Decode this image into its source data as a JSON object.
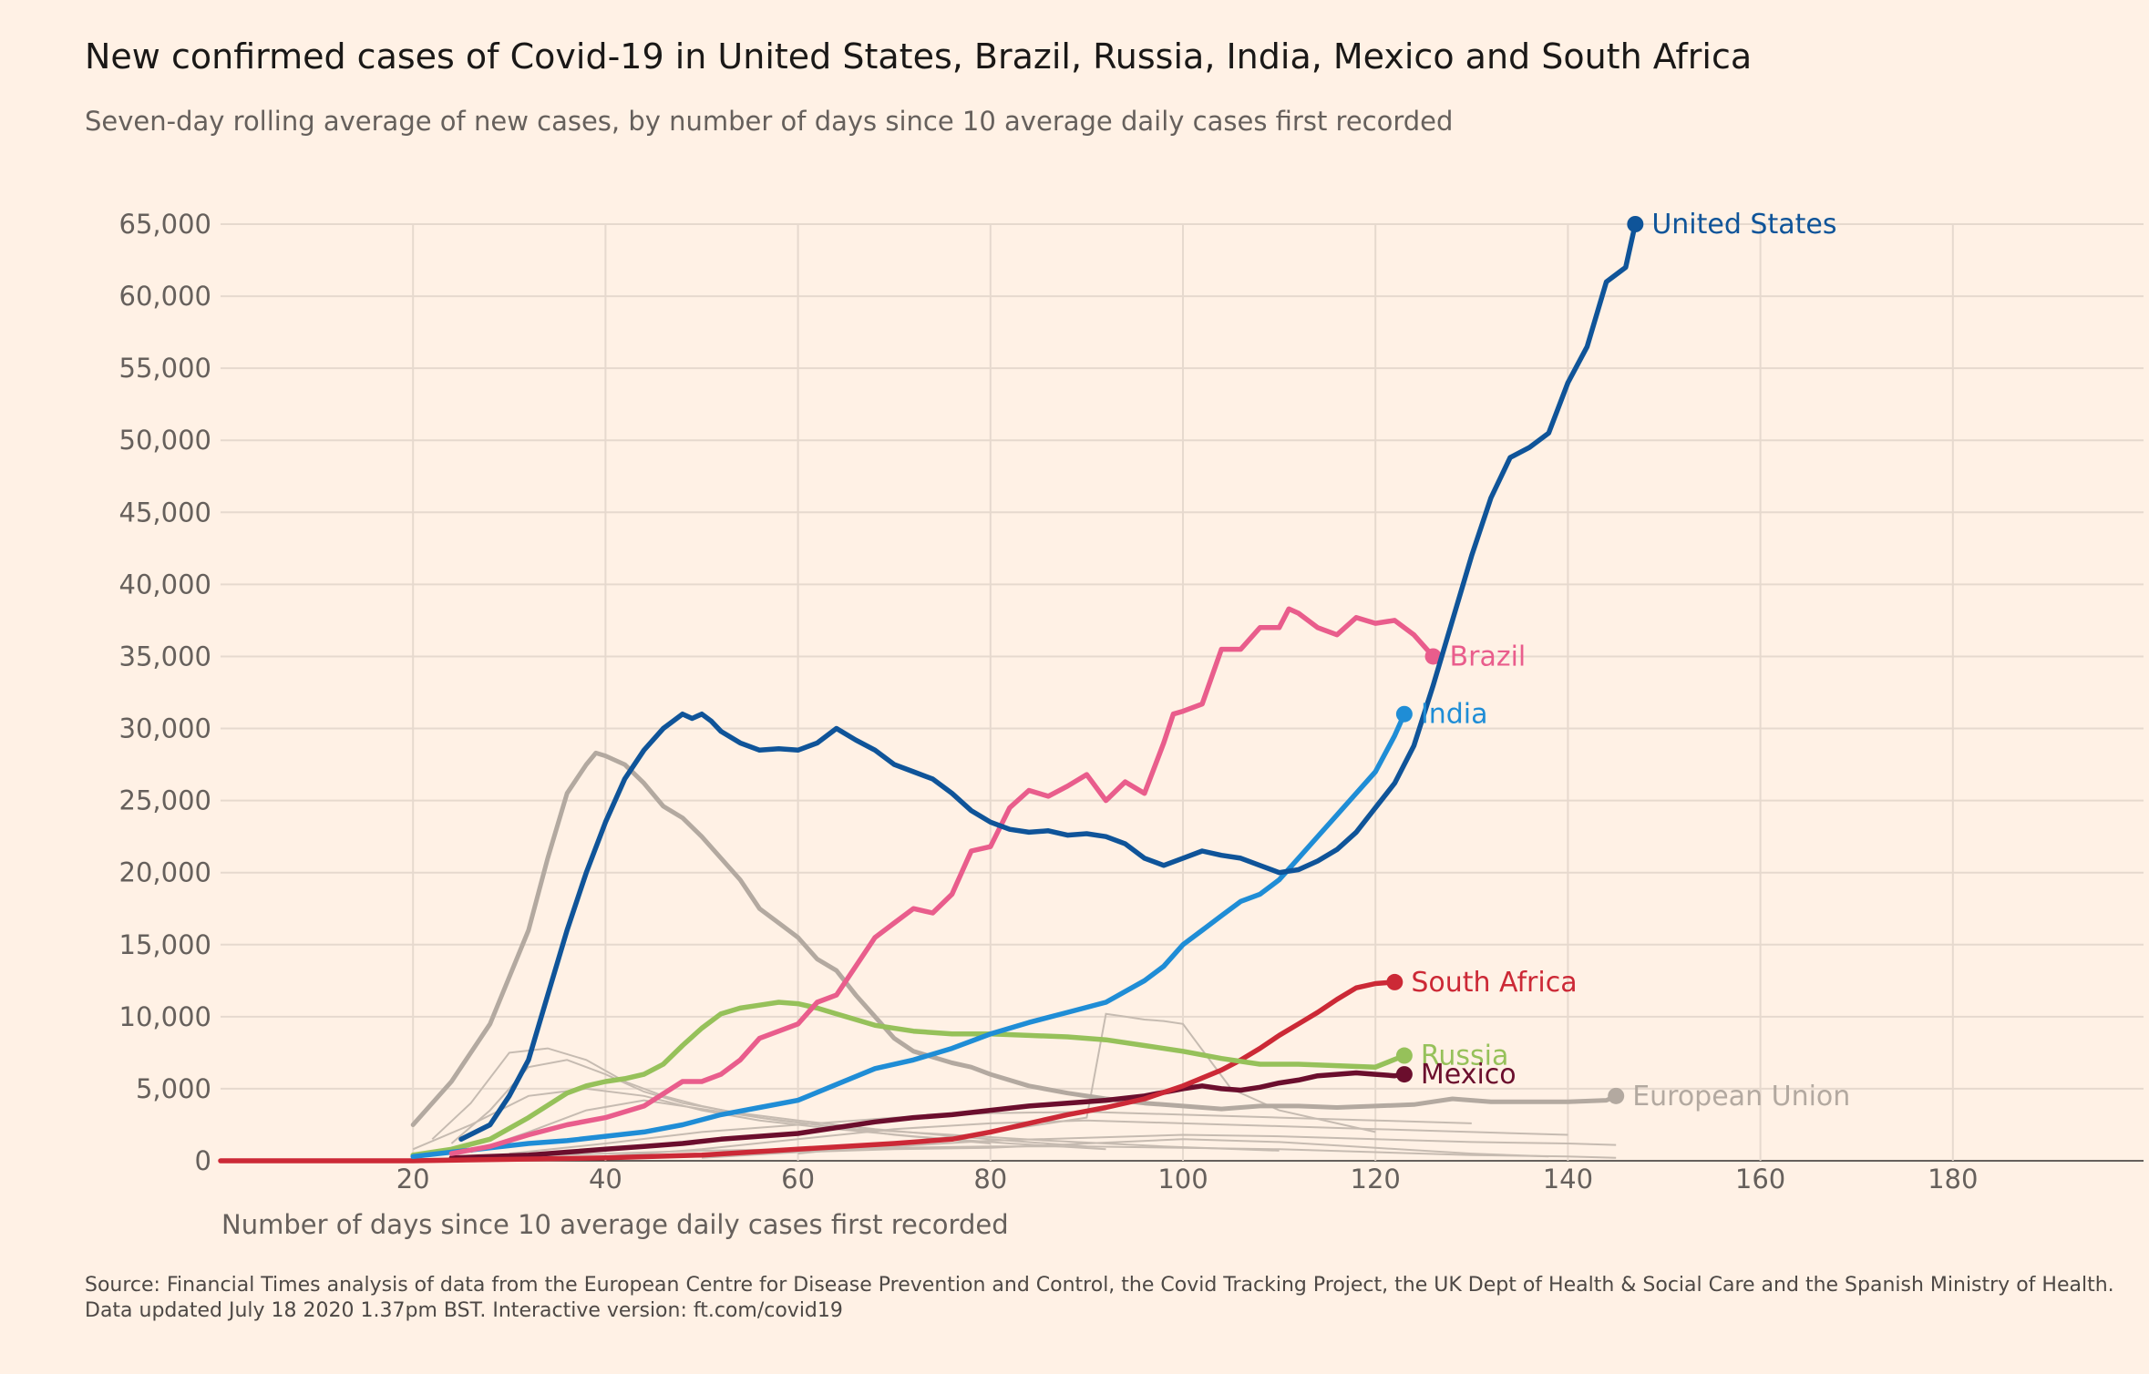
{
  "header": {
    "title": "New confirmed cases of Covid-19 in United States, Brazil, Russia, India, Mexico and South Africa",
    "subtitle": "Seven-day rolling average of new cases, by number of days since 10 average daily cases first recorded"
  },
  "footer": {
    "source": "Source: Financial Times analysis of data from the European Centre for Disease Prevention and Control, the Covid Tracking Project, the UK Dept of Health & Social Care and the Spanish Ministry of Health.",
    "updated": "Data updated July 18 2020 1.37pm BST. Interactive version: ft.com/covid19"
  },
  "colors": {
    "background": "#fff1e5",
    "grid": "#e6d9ce",
    "axis_text": "#66605c",
    "united_states": "#0f5499",
    "brazil": "#e95d8c",
    "india": "#1f8dd6",
    "south_africa": "#cc2936",
    "russia": "#96c15a",
    "mexico": "#6b0e2d",
    "european_union": "#b3a9a0",
    "other_countries": "#c6bbb1"
  },
  "chart_data": {
    "type": "line",
    "title": "New confirmed cases of Covid-19 in United States, Brazil, Russia, India, Mexico and South Africa",
    "subtitle": "Seven-day rolling average of new cases, by number of days since 10 average daily cases first recorded",
    "xlabel": "Number of days since 10 average daily cases first recorded",
    "ylabel": "",
    "xlim": [
      0,
      200
    ],
    "ylim": [
      0,
      65000
    ],
    "x_ticks": [
      20,
      40,
      60,
      80,
      100,
      120,
      140,
      160,
      180
    ],
    "x_tick_labels": [
      "20",
      "40",
      "60",
      "80",
      "100",
      "120",
      "140",
      "160",
      "180"
    ],
    "y_ticks": [
      0,
      5000,
      10000,
      15000,
      20000,
      25000,
      30000,
      35000,
      40000,
      45000,
      50000,
      55000,
      60000,
      65000
    ],
    "y_tick_labels": [
      "0",
      "5,000",
      "10,000",
      "15,000",
      "20,000",
      "25,000",
      "30,000",
      "35,000",
      "40,000",
      "45,000",
      "50,000",
      "55,000",
      "60,000",
      "65,000"
    ],
    "grid": true,
    "legend": "direct labels at line ends",
    "series": [
      {
        "name": "European Union",
        "color": "#b3a9a0",
        "x": [
          20,
          24,
          28,
          32,
          34,
          36,
          38,
          39,
          40,
          42,
          44,
          46,
          48,
          50,
          52,
          54,
          56,
          58,
          60,
          62,
          64,
          66,
          68,
          70,
          72,
          74,
          76,
          78,
          80,
          84,
          88,
          92,
          96,
          100,
          104,
          108,
          112,
          116,
          120,
          124,
          128,
          132,
          136,
          140,
          144,
          145
        ],
        "y": [
          2500,
          5500,
          9500,
          16000,
          21000,
          25500,
          27500,
          28300,
          28100,
          27500,
          26200,
          24600,
          23800,
          22500,
          21000,
          19500,
          17500,
          16500,
          15500,
          14000,
          13200,
          11500,
          10000,
          8500,
          7600,
          7200,
          6800,
          6500,
          6000,
          5200,
          4700,
          4300,
          4000,
          3800,
          3600,
          3800,
          3800,
          3700,
          3800,
          3900,
          4300,
          4100,
          4100,
          4100,
          4200,
          4500
        ]
      },
      {
        "name": "United States",
        "color": "#0f5499",
        "x": [
          25,
          28,
          30,
          32,
          34,
          36,
          38,
          40,
          42,
          44,
          46,
          48,
          49,
          50,
          51,
          52,
          54,
          56,
          58,
          60,
          62,
          64,
          66,
          68,
          70,
          72,
          74,
          76,
          78,
          80,
          82,
          84,
          86,
          88,
          90,
          92,
          94,
          96,
          98,
          100,
          102,
          104,
          106,
          108,
          110,
          112,
          114,
          116,
          118,
          120,
          122,
          124,
          126,
          128,
          130,
          132,
          134,
          136,
          138,
          140,
          142,
          144,
          146,
          147
        ],
        "y": [
          1500,
          2500,
          4500,
          7000,
          11500,
          16000,
          20000,
          23500,
          26500,
          28500,
          30000,
          31000,
          30700,
          31000,
          30500,
          29800,
          29000,
          28500,
          28600,
          28500,
          29000,
          30000,
          29200,
          28500,
          27500,
          27000,
          26500,
          25500,
          24300,
          23500,
          23000,
          22800,
          22900,
          22600,
          22700,
          22500,
          22000,
          21000,
          20500,
          21000,
          21500,
          21200,
          21000,
          20500,
          20000,
          20200,
          20800,
          21600,
          22800,
          24500,
          26200,
          28800,
          33000,
          37500,
          42000,
          46000,
          48800,
          49500,
          50500,
          54000,
          56500,
          61000,
          62000,
          65000
        ]
      },
      {
        "name": "Brazil",
        "color": "#e95d8c",
        "x": [
          24,
          28,
          32,
          36,
          40,
          44,
          48,
          50,
          52,
          54,
          56,
          58,
          60,
          62,
          64,
          66,
          68,
          70,
          72,
          74,
          76,
          78,
          80,
          82,
          84,
          86,
          88,
          90,
          92,
          94,
          96,
          98,
          99,
          100,
          102,
          104,
          106,
          108,
          110,
          111,
          112,
          114,
          116,
          118,
          120,
          122,
          124,
          126
        ],
        "y": [
          500,
          1000,
          1800,
          2500,
          3000,
          3800,
          5500,
          5500,
          6000,
          7000,
          8500,
          9000,
          9500,
          11000,
          11500,
          13500,
          15500,
          16500,
          17500,
          17200,
          18500,
          21500,
          21800,
          24500,
          25700,
          25300,
          26000,
          26800,
          25000,
          26300,
          25500,
          29000,
          31000,
          31200,
          31700,
          35500,
          35500,
          37000,
          37000,
          38300,
          38000,
          37000,
          36500,
          37700,
          37300,
          37500,
          36500,
          35000
        ]
      },
      {
        "name": "India",
        "color": "#1f8dd6",
        "x": [
          20,
          24,
          28,
          32,
          36,
          40,
          44,
          48,
          52,
          56,
          60,
          64,
          68,
          72,
          76,
          80,
          84,
          88,
          92,
          96,
          98,
          100,
          102,
          104,
          106,
          108,
          110,
          112,
          114,
          116,
          118,
          120,
          122,
          123
        ],
        "y": [
          300,
          600,
          900,
          1200,
          1400,
          1700,
          2000,
          2500,
          3200,
          3700,
          4200,
          5300,
          6400,
          7000,
          7800,
          8800,
          9600,
          10300,
          11000,
          12500,
          13500,
          15000,
          16000,
          17000,
          18000,
          18500,
          19500,
          21000,
          22500,
          24000,
          25500,
          27000,
          29500,
          31000
        ]
      },
      {
        "name": "South Africa",
        "color": "#cc2936",
        "x": [
          0,
          20,
          30,
          40,
          50,
          60,
          70,
          76,
          80,
          84,
          88,
          92,
          96,
          100,
          104,
          106,
          108,
          110,
          112,
          114,
          116,
          118,
          120,
          122
        ],
        "y": [
          0,
          0,
          100,
          200,
          400,
          800,
          1200,
          1500,
          2000,
          2600,
          3200,
          3700,
          4300,
          5200,
          6300,
          7000,
          7800,
          8700,
          9500,
          10300,
          11200,
          12000,
          12300,
          12400
        ]
      },
      {
        "name": "Russia",
        "color": "#96c15a",
        "x": [
          20,
          24,
          28,
          32,
          36,
          38,
          40,
          42,
          44,
          46,
          48,
          50,
          52,
          54,
          56,
          58,
          60,
          62,
          64,
          66,
          68,
          72,
          76,
          80,
          84,
          88,
          92,
          96,
          100,
          104,
          108,
          112,
          116,
          120,
          123
        ],
        "y": [
          400,
          800,
          1500,
          3000,
          4700,
          5200,
          5500,
          5700,
          6000,
          6700,
          8000,
          9200,
          10200,
          10600,
          10800,
          11000,
          10900,
          10600,
          10200,
          9800,
          9400,
          9000,
          8800,
          8800,
          8700,
          8600,
          8400,
          8000,
          7600,
          7100,
          6700,
          6700,
          6600,
          6500,
          7300
        ]
      },
      {
        "name": "Mexico",
        "color": "#6b0e2d",
        "x": [
          24,
          28,
          32,
          36,
          40,
          44,
          48,
          52,
          56,
          60,
          64,
          68,
          72,
          76,
          80,
          84,
          88,
          92,
          96,
          100,
          102,
          104,
          106,
          108,
          110,
          112,
          114,
          116,
          118,
          120,
          122,
          123
        ],
        "y": [
          200,
          300,
          400,
          600,
          800,
          1000,
          1200,
          1500,
          1700,
          1900,
          2300,
          2700,
          3000,
          3200,
          3500,
          3800,
          4000,
          4200,
          4500,
          5000,
          5200,
          5000,
          4900,
          5100,
          5400,
          5600,
          5900,
          6000,
          6100,
          6000,
          5900,
          6000
        ]
      }
    ],
    "background_series": [
      {
        "x": [
          22,
          26,
          30,
          34,
          38,
          42,
          46,
          50,
          56,
          62,
          70,
          80
        ],
        "y": [
          1500,
          4000,
          7500,
          7800,
          7000,
          5500,
          4500,
          3800,
          3000,
          2500,
          1800,
          1200
        ]
      },
      {
        "x": [
          24,
          28,
          32,
          36,
          40,
          44,
          48,
          54,
          60,
          68,
          78,
          90
        ],
        "y": [
          1200,
          3500,
          6500,
          7000,
          6000,
          4800,
          4000,
          3300,
          2800,
          2200,
          1600,
          1000
        ]
      },
      {
        "x": [
          20,
          26,
          32,
          38,
          44,
          50,
          56,
          64,
          72,
          82,
          92
        ],
        "y": [
          800,
          2500,
          4500,
          5000,
          4500,
          3500,
          2800,
          2200,
          1700,
          1200,
          800
        ]
      },
      {
        "x": [
          26,
          32,
          38,
          44,
          50,
          58,
          66,
          76,
          86,
          98,
          110
        ],
        "y": [
          600,
          2000,
          3500,
          4200,
          3600,
          2800,
          2200,
          1800,
          1400,
          1000,
          700
        ]
      },
      {
        "x": [
          30,
          40,
          50,
          60,
          70,
          80,
          90,
          100,
          110,
          120,
          130
        ],
        "y": [
          500,
          1200,
          2000,
          2500,
          3000,
          3300,
          3400,
          3200,
          3000,
          2800,
          2600
        ]
      },
      {
        "x": [
          40,
          50,
          60,
          70,
          80,
          90,
          100,
          110,
          120,
          130,
          140
        ],
        "y": [
          300,
          800,
          1500,
          2200,
          2600,
          2800,
          2600,
          2400,
          2200,
          2000,
          1800
        ]
      },
      {
        "x": [
          50,
          60,
          70,
          80,
          90,
          100,
          110,
          120,
          130,
          140,
          145
        ],
        "y": [
          200,
          600,
          1000,
          1400,
          1600,
          1800,
          1700,
          1500,
          1300,
          1200,
          1100
        ]
      },
      {
        "x": [
          60,
          70,
          80,
          90,
          92,
          94,
          96,
          98,
          100,
          105,
          110,
          120
        ],
        "y": [
          500,
          1200,
          2000,
          3000,
          10200,
          10000,
          9800,
          9700,
          9500,
          5000,
          3500,
          2000
        ]
      },
      {
        "x": [
          20,
          30,
          40,
          50,
          60,
          70,
          80,
          90,
          100,
          110,
          120,
          130,
          140,
          145
        ],
        "y": [
          100,
          300,
          500,
          700,
          800,
          900,
          1000,
          1000,
          900,
          800,
          600,
          400,
          300,
          200
        ]
      },
      {
        "x": [
          30,
          40,
          50,
          60,
          70,
          80,
          90,
          100,
          110,
          120,
          130,
          138
        ],
        "y": [
          100,
          200,
          400,
          600,
          800,
          900,
          1200,
          1500,
          1300,
          900,
          500,
          300
        ]
      }
    ],
    "end_labels": [
      {
        "series": "United States",
        "text": "United States"
      },
      {
        "series": "Brazil",
        "text": "Brazil"
      },
      {
        "series": "India",
        "text": "India"
      },
      {
        "series": "South Africa",
        "text": "South Africa"
      },
      {
        "series": "Russia",
        "text": "Russia"
      },
      {
        "series": "Mexico",
        "text": "Mexico"
      },
      {
        "series": "European Union",
        "text": "European Union"
      }
    ]
  }
}
